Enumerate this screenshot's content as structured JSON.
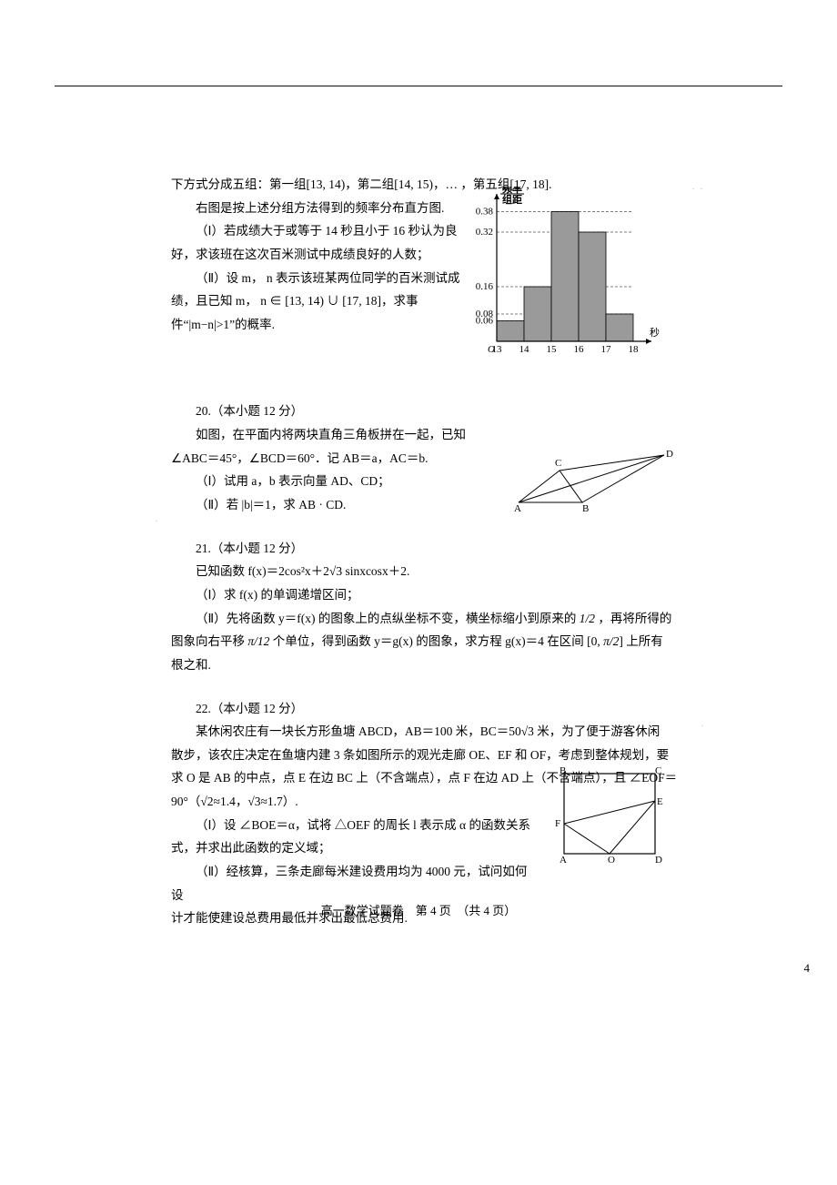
{
  "q19": {
    "intro1": "下方式分成五组：第一组[13, 14)，第二组[14, 15)，… ，第五组[17, 18].",
    "intro2": "右图是按上述分组方法得到的频率分布直方图.",
    "part1": "（Ⅰ）若成绩大于或等于 14 秒且小于 16 秒认为良好，求该班在这次百米测试中成绩良好的人数；",
    "part2": "（Ⅱ）设 m， n 表示该班某两位同学的百米测试成绩，且已知 m， n ∈ [13, 14) ∪ [17, 18]，求事件“|m−n|>1”的概率."
  },
  "q20": {
    "head": "20.（本小题 12 分）",
    "line1": "如图，在平面内将两块直角三角板拼在一起，已知",
    "line2": "∠ABC＝45°，∠BCD＝60°．记 AB＝a，AC＝b.",
    "p1": "（Ⅰ）试用 a，b 表示向量 AD、CD；",
    "p2": "（Ⅱ）若 |b|＝1，求 AB · CD."
  },
  "q21": {
    "head": "21.（本小题 12 分）",
    "line1": "已知函数 f(x)＝2cos²x＋2√3 sinxcosx＋2.",
    "p1": "（Ⅰ）求 f(x) 的单调递增区间；",
    "p2a": "（Ⅱ）先将函数 y＝f(x) 的图象上的点纵坐标不变，横坐标缩小到原来的 ",
    "p2frac1": "1/2",
    "p2b": " ，再将所得的",
    "p2c": "图象向右平移 ",
    "p2frac2": "π/12",
    "p2d": " 个单位，得到函数 y＝g(x) 的图象，求方程 g(x)＝4 在区间 [0, ",
    "p2frac3": "π/2",
    "p2e": "] 上所有",
    "p2f": "根之和."
  },
  "q22": {
    "head": "22.（本小题 12 分）",
    "line1": "某休闲农庄有一块长方形鱼塘 ABCD，AB＝100 米，BC＝50√3 米，为了便于游客休闲",
    "line2": "散步，该农庄决定在鱼塘内建 3 条如图所示的观光走廊 OE、EF 和 OF，考虑到整体规划，要",
    "line3": "求 O 是 AB 的中点，点 E 在边 BC 上（不含端点），点 F 在边 AD 上（不含端点），且 ∠EOF＝",
    "line4": "90°（√2≈1.4，√3≈1.7）.",
    "p1": "（Ⅰ）设 ∠BOE＝α，试将 △OEF 的周长 l 表示成 α 的函数关系",
    "p1b": "式，并求出此函数的定义域；",
    "p2": "（Ⅱ）经核算，三条走廊每米建设费用均为 4000 元，试问如何设",
    "p2b": "计才能使建设总费用最低并求出最低总费用."
  },
  "footer": "高一数学试题卷　第 4 页　（共 4 页）",
  "pageno": "4",
  "hist": {
    "ylabel_top": "频率",
    "ylabel_bot": "组距",
    "xlabel": "秒",
    "yticks": [
      "0.38",
      "0.32",
      "0.16",
      "0.08",
      "0.06"
    ],
    "xticks": [
      "13",
      "14",
      "15",
      "16",
      "17",
      "18"
    ],
    "bars": [
      {
        "x": 13,
        "h": 0.06
      },
      {
        "x": 14,
        "h": 0.16
      },
      {
        "x": 15,
        "h": 0.38
      },
      {
        "x": 16,
        "h": 0.32
      },
      {
        "x": 17,
        "h": 0.08
      }
    ],
    "bar_fill": "#9a9a9a",
    "axis_color": "#000000"
  },
  "tri_labels": [
    "A",
    "B",
    "C",
    "D"
  ],
  "rect_labels": [
    "A",
    "B",
    "C",
    "D",
    "E",
    "F",
    "O"
  ]
}
